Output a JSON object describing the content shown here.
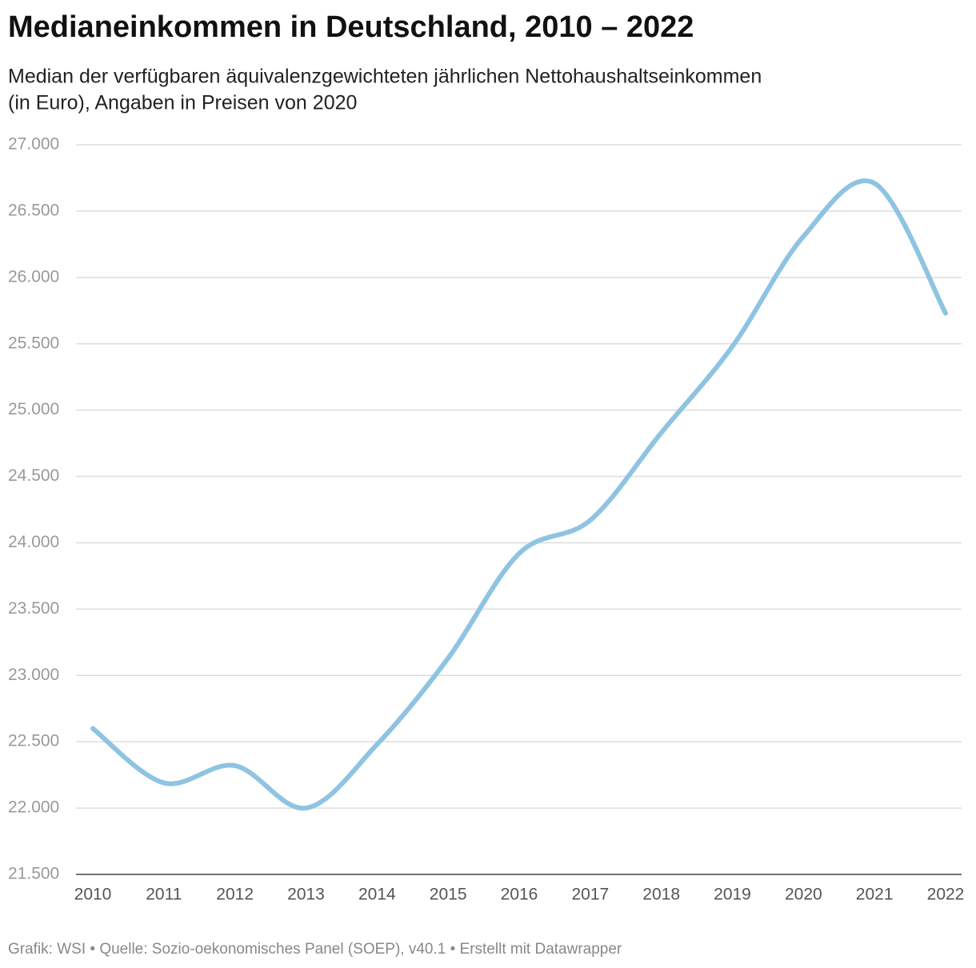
{
  "chart_data": {
    "type": "line",
    "title": "Medianeinkommen in Deutschland, 2010 – 2022",
    "subtitle": [
      "Median der verfügbaren äquivalenzgewichteten jährlichen Nettohaushaltseinkommen",
      "(in Euro), Angaben in Preisen von 2020"
    ],
    "footer": "Grafik: WSI • Quelle: Sozio-oekonomisches Panel (SOEP), v40.1 • Erstellt mit Datawrapper",
    "categories": [
      "2010",
      "2011",
      "2012",
      "2013",
      "2014",
      "2015",
      "2016",
      "2017",
      "2018",
      "2019",
      "2020",
      "2021",
      "2022"
    ],
    "series": [
      {
        "name": "Medianeinkommen",
        "color": "#8ec4e2",
        "values": [
          22600,
          22190,
          22320,
          22000,
          22480,
          23130,
          23920,
          24170,
          24830,
          25480,
          26310,
          26710,
          25730
        ]
      }
    ],
    "ylim": [
      21500,
      27000
    ],
    "yticks": [
      {
        "value": 21500,
        "label": "21.500"
      },
      {
        "value": 22000,
        "label": "22.000"
      },
      {
        "value": 22500,
        "label": "22.500"
      },
      {
        "value": 23000,
        "label": "23.000"
      },
      {
        "value": 23500,
        "label": "23.500"
      },
      {
        "value": 24000,
        "label": "24.000"
      },
      {
        "value": 24500,
        "label": "24.500"
      },
      {
        "value": 25000,
        "label": "25.000"
      },
      {
        "value": 25500,
        "label": "25.500"
      },
      {
        "value": 26000,
        "label": "26.000"
      },
      {
        "value": 26500,
        "label": "26.500"
      },
      {
        "value": 27000,
        "label": "27.000"
      }
    ],
    "grid": true
  }
}
